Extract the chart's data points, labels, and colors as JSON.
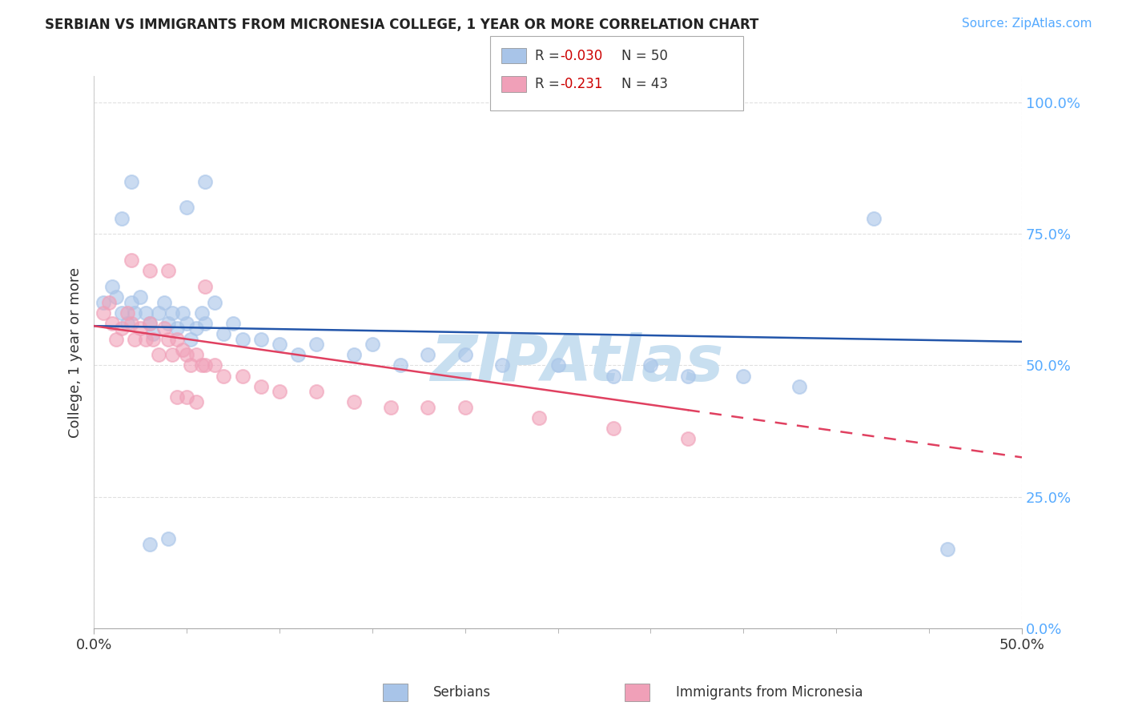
{
  "title": "SERBIAN VS IMMIGRANTS FROM MICRONESIA COLLEGE, 1 YEAR OR MORE CORRELATION CHART",
  "source": "Source: ZipAtlas.com",
  "ylabel": "College, 1 year or more",
  "xlim": [
    0.0,
    0.5
  ],
  "ylim": [
    0.0,
    1.05
  ],
  "legend_serbian_R": "-0.030",
  "legend_serbian_N": "50",
  "legend_micronesia_R": "-0.231",
  "legend_micronesia_N": "43",
  "serbian_color": "#a8c4e8",
  "micronesia_color": "#f0a0b8",
  "trend_serbian_color": "#2255aa",
  "trend_micronesia_color": "#e04060",
  "watermark": "ZIPAtlas",
  "watermark_color": "#c8dff0",
  "background_color": "#ffffff",
  "grid_color": "#e0e0e0",
  "yaxis_tick_color": "#55aaff",
  "source_color": "#55aaff",
  "serbian_x": [
    0.005,
    0.01,
    0.012,
    0.015,
    0.018,
    0.02,
    0.022,
    0.025,
    0.028,
    0.03,
    0.032,
    0.035,
    0.038,
    0.04,
    0.042,
    0.045,
    0.048,
    0.05,
    0.052,
    0.055,
    0.058,
    0.06,
    0.065,
    0.07,
    0.075,
    0.08,
    0.09,
    0.1,
    0.11,
    0.12,
    0.14,
    0.15,
    0.165,
    0.18,
    0.2,
    0.22,
    0.25,
    0.28,
    0.3,
    0.32,
    0.35,
    0.38,
    0.05,
    0.06,
    0.42,
    0.46,
    0.015,
    0.02,
    0.03,
    0.04
  ],
  "serbian_y": [
    0.62,
    0.65,
    0.63,
    0.6,
    0.58,
    0.62,
    0.6,
    0.63,
    0.6,
    0.58,
    0.56,
    0.6,
    0.62,
    0.58,
    0.6,
    0.57,
    0.6,
    0.58,
    0.55,
    0.57,
    0.6,
    0.58,
    0.62,
    0.56,
    0.58,
    0.55,
    0.55,
    0.54,
    0.52,
    0.54,
    0.52,
    0.54,
    0.5,
    0.52,
    0.52,
    0.5,
    0.5,
    0.48,
    0.5,
    0.48,
    0.48,
    0.46,
    0.8,
    0.85,
    0.78,
    0.15,
    0.78,
    0.85,
    0.16,
    0.17
  ],
  "micronesia_x": [
    0.005,
    0.008,
    0.01,
    0.012,
    0.015,
    0.018,
    0.02,
    0.022,
    0.025,
    0.028,
    0.03,
    0.032,
    0.035,
    0.038,
    0.04,
    0.042,
    0.045,
    0.048,
    0.05,
    0.052,
    0.055,
    0.058,
    0.06,
    0.065,
    0.07,
    0.08,
    0.09,
    0.1,
    0.12,
    0.14,
    0.16,
    0.18,
    0.2,
    0.24,
    0.28,
    0.32,
    0.06,
    0.04,
    0.03,
    0.02,
    0.05,
    0.045,
    0.055
  ],
  "micronesia_y": [
    0.6,
    0.62,
    0.58,
    0.55,
    0.57,
    0.6,
    0.58,
    0.55,
    0.57,
    0.55,
    0.58,
    0.55,
    0.52,
    0.57,
    0.55,
    0.52,
    0.55,
    0.53,
    0.52,
    0.5,
    0.52,
    0.5,
    0.5,
    0.5,
    0.48,
    0.48,
    0.46,
    0.45,
    0.45,
    0.43,
    0.42,
    0.42,
    0.42,
    0.4,
    0.38,
    0.36,
    0.65,
    0.68,
    0.68,
    0.7,
    0.44,
    0.44,
    0.43
  ],
  "serbian_trend_x0": 0.0,
  "serbian_trend_x1": 0.5,
  "serbian_trend_y0": 0.575,
  "serbian_trend_y1": 0.545,
  "micronesia_trend_x0": 0.0,
  "micronesia_trend_x1": 0.5,
  "micronesia_trend_y0": 0.575,
  "micronesia_trend_y1": 0.325
}
